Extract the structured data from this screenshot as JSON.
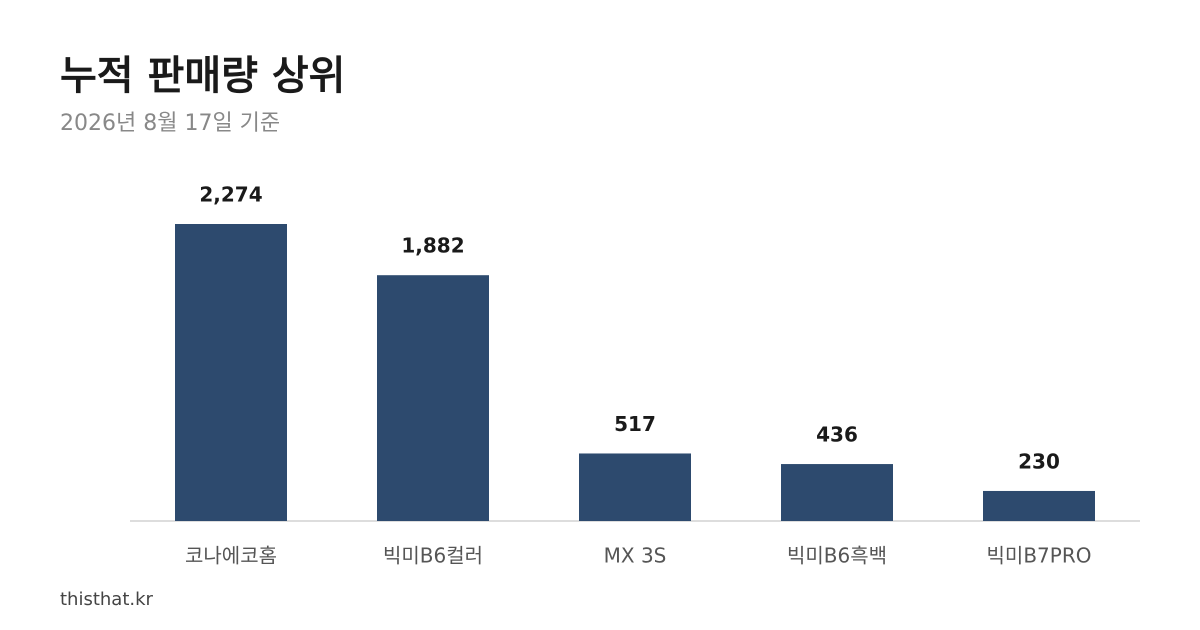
{
  "chart_data": {
    "type": "bar",
    "title": "누적 판매량 상위",
    "subtitle": "2026년 8월 17일 기준",
    "categories": [
      "코나에코홈",
      "빅미B6컬러",
      "MX 3S",
      "빅미B6흑백",
      "빅미B7PRO"
    ],
    "values": [
      2274,
      1882,
      517,
      436,
      230
    ],
    "value_labels": [
      "2,274",
      "1,882",
      "517",
      "436",
      "230"
    ],
    "color": "#2d4a6e",
    "source": "thisthat.kr"
  }
}
